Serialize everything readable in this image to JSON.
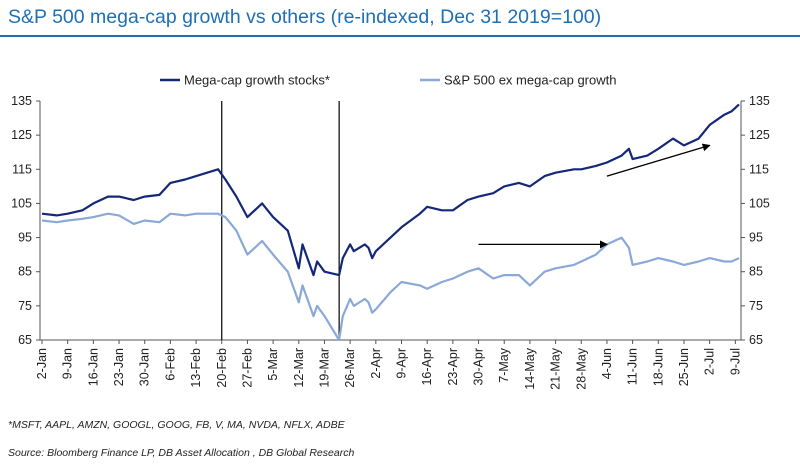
{
  "title": "S&P 500 mega-cap growth vs others (re-indexed, Dec 31 2019=100)",
  "footnote": "*MSFT, AAPL, AMZN, GOOGL, GOOG, FB, V, MA, NVDA, NFLX, ADBE",
  "source": "Source: Bloomberg Finance LP, DB Asset Allocation , DB Global Research",
  "colors": {
    "title": "#1f6fb5",
    "mega": "#14287a",
    "others": "#8aa8d8",
    "vline": "#000000",
    "arrow": "#000000"
  },
  "chart_data": {
    "type": "line",
    "xlabel": "",
    "ylabel": "",
    "ylim": [
      65,
      135
    ],
    "yticks": [
      65,
      75,
      85,
      95,
      105,
      115,
      125,
      135
    ],
    "xticks": [
      "2-Jan",
      "9-Jan",
      "16-Jan",
      "23-Jan",
      "30-Jan",
      "6-Feb",
      "13-Feb",
      "20-Feb",
      "27-Feb",
      "5-Mar",
      "12-Mar",
      "19-Mar",
      "26-Mar",
      "2-Apr",
      "9-Apr",
      "16-Apr",
      "23-Apr",
      "30-Apr",
      "7-May",
      "14-May",
      "21-May",
      "28-May",
      "4-Jun",
      "11-Jun",
      "18-Jun",
      "25-Jun",
      "2-Jul",
      "9-Jul"
    ],
    "legend": "top",
    "grid": false,
    "vertical_lines": [
      "20-Feb",
      "23-Mar"
    ],
    "arrows": [
      {
        "from": [
          "30-Apr",
          93
        ],
        "to": [
          "4-Jun",
          93
        ]
      },
      {
        "from": [
          "4-Jun",
          113
        ],
        "to": [
          "2-Jul",
          122
        ]
      }
    ],
    "series": [
      {
        "name": "Mega-cap growth stocks*",
        "points": [
          [
            "2-Jan",
            102
          ],
          [
            "6-Jan",
            101.5
          ],
          [
            "9-Jan",
            102
          ],
          [
            "13-Jan",
            103
          ],
          [
            "16-Jan",
            105
          ],
          [
            "20-Jan",
            107
          ],
          [
            "23-Jan",
            107
          ],
          [
            "27-Jan",
            106
          ],
          [
            "30-Jan",
            107
          ],
          [
            "3-Feb",
            107.5
          ],
          [
            "6-Feb",
            111
          ],
          [
            "10-Feb",
            112
          ],
          [
            "13-Feb",
            113
          ],
          [
            "16-Feb",
            114
          ],
          [
            "19-Feb",
            115
          ],
          [
            "21-Feb",
            112
          ],
          [
            "24-Feb",
            107
          ],
          [
            "27-Feb",
            101
          ],
          [
            "2-Mar",
            105
          ],
          [
            "5-Mar",
            101
          ],
          [
            "9-Mar",
            97
          ],
          [
            "12-Mar",
            86
          ],
          [
            "13-Mar",
            93
          ],
          [
            "16-Mar",
            84
          ],
          [
            "17-Mar",
            88
          ],
          [
            "19-Mar",
            85
          ],
          [
            "23-Mar",
            84
          ],
          [
            "24-Mar",
            89
          ],
          [
            "26-Mar",
            93
          ],
          [
            "27-Mar",
            91
          ],
          [
            "30-Mar",
            93
          ],
          [
            "31-Mar",
            92
          ],
          [
            "1-Apr",
            89
          ],
          [
            "2-Apr",
            91
          ],
          [
            "6-Apr",
            95
          ],
          [
            "9-Apr",
            98
          ],
          [
            "14-Apr",
            102
          ],
          [
            "16-Apr",
            104
          ],
          [
            "20-Apr",
            103
          ],
          [
            "23-Apr",
            103
          ],
          [
            "27-Apr",
            106
          ],
          [
            "30-Apr",
            107
          ],
          [
            "4-May",
            108
          ],
          [
            "7-May",
            110
          ],
          [
            "11-May",
            111
          ],
          [
            "14-May",
            110
          ],
          [
            "18-May",
            113
          ],
          [
            "21-May",
            114
          ],
          [
            "26-May",
            115
          ],
          [
            "28-May",
            115
          ],
          [
            "1-Jun",
            116
          ],
          [
            "4-Jun",
            117
          ],
          [
            "8-Jun",
            119
          ],
          [
            "10-Jun",
            121
          ],
          [
            "11-Jun",
            118
          ],
          [
            "15-Jun",
            119
          ],
          [
            "18-Jun",
            121
          ],
          [
            "22-Jun",
            124
          ],
          [
            "25-Jun",
            122
          ],
          [
            "29-Jun",
            124
          ],
          [
            "2-Jul",
            128
          ],
          [
            "6-Jul",
            131
          ],
          [
            "8-Jul",
            132
          ],
          [
            "10-Jul",
            134
          ]
        ]
      },
      {
        "name": "S&P 500 ex mega-cap growth",
        "points": [
          [
            "2-Jan",
            100
          ],
          [
            "6-Jan",
            99.5
          ],
          [
            "9-Jan",
            100
          ],
          [
            "13-Jan",
            100.5
          ],
          [
            "16-Jan",
            101
          ],
          [
            "20-Jan",
            102
          ],
          [
            "23-Jan",
            101.5
          ],
          [
            "27-Jan",
            99
          ],
          [
            "30-Jan",
            100
          ],
          [
            "3-Feb",
            99.5
          ],
          [
            "6-Feb",
            102
          ],
          [
            "10-Feb",
            101.5
          ],
          [
            "13-Feb",
            102
          ],
          [
            "16-Feb",
            102
          ],
          [
            "19-Feb",
            102
          ],
          [
            "21-Feb",
            101
          ],
          [
            "24-Feb",
            97
          ],
          [
            "27-Feb",
            90
          ],
          [
            "2-Mar",
            94
          ],
          [
            "5-Mar",
            90
          ],
          [
            "9-Mar",
            85
          ],
          [
            "12-Mar",
            76
          ],
          [
            "13-Mar",
            81
          ],
          [
            "16-Mar",
            72
          ],
          [
            "17-Mar",
            75
          ],
          [
            "19-Mar",
            72
          ],
          [
            "23-Mar",
            65
          ],
          [
            "24-Mar",
            72
          ],
          [
            "26-Mar",
            77
          ],
          [
            "27-Mar",
            75
          ],
          [
            "30-Mar",
            77
          ],
          [
            "31-Mar",
            76
          ],
          [
            "1-Apr",
            73
          ],
          [
            "2-Apr",
            74
          ],
          [
            "6-Apr",
            79
          ],
          [
            "9-Apr",
            82
          ],
          [
            "14-Apr",
            81
          ],
          [
            "16-Apr",
            80
          ],
          [
            "20-Apr",
            82
          ],
          [
            "23-Apr",
            83
          ],
          [
            "27-Apr",
            85
          ],
          [
            "30-Apr",
            86
          ],
          [
            "4-May",
            83
          ],
          [
            "7-May",
            84
          ],
          [
            "11-May",
            84
          ],
          [
            "14-May",
            81
          ],
          [
            "18-May",
            85
          ],
          [
            "21-May",
            86
          ],
          [
            "26-May",
            87
          ],
          [
            "28-May",
            88
          ],
          [
            "1-Jun",
            90
          ],
          [
            "4-Jun",
            93
          ],
          [
            "8-Jun",
            95
          ],
          [
            "10-Jun",
            92
          ],
          [
            "11-Jun",
            87
          ],
          [
            "15-Jun",
            88
          ],
          [
            "18-Jun",
            89
          ],
          [
            "22-Jun",
            88
          ],
          [
            "25-Jun",
            87
          ],
          [
            "29-Jun",
            88
          ],
          [
            "2-Jul",
            89
          ],
          [
            "6-Jul",
            88
          ],
          [
            "8-Jul",
            88
          ],
          [
            "10-Jul",
            89
          ]
        ]
      }
    ]
  }
}
